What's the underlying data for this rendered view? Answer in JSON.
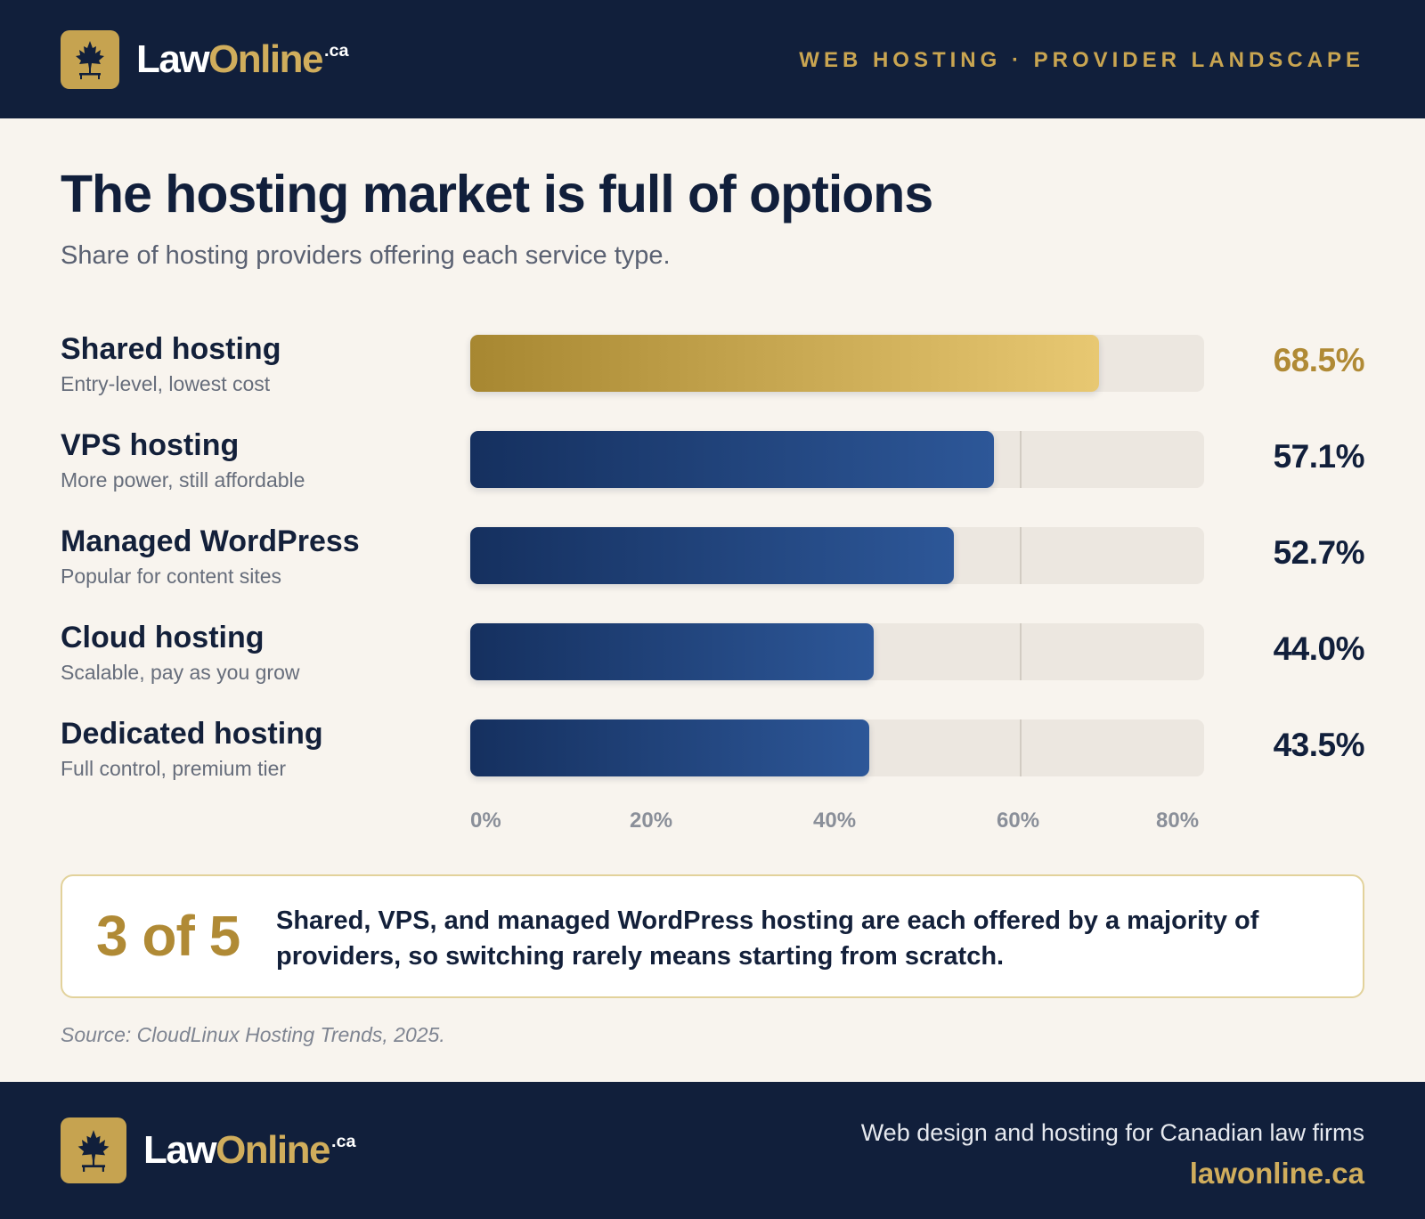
{
  "brand": {
    "name_part1": "Law",
    "name_part2": "Online",
    "tld": ".ca",
    "icon": "maple-leaf-icon",
    "badge_color": "#c6a350"
  },
  "header": {
    "tagline": "WEB HOSTING · PROVIDER LANDSCAPE"
  },
  "colors": {
    "navy": "#111f3b",
    "gold": "#c6a350",
    "bar_start": "#15305f",
    "bar_end": "#2d5798",
    "highlight_start": "#a78731",
    "highlight_end": "#e8c872",
    "background": "#f8f4ee"
  },
  "chart_data": {
    "type": "bar",
    "orientation": "horizontal",
    "title": "The hosting market is full of options",
    "subtitle": "Share of hosting providers offering each service type.",
    "categories": [
      "Shared hosting",
      "VPS hosting",
      "Managed WordPress",
      "Cloud hosting",
      "Dedicated hosting"
    ],
    "descriptions": [
      "Entry-level, lowest cost",
      "More power, still affordable",
      "Popular for content sites",
      "Scalable, pay as you grow",
      "Full control, premium tier"
    ],
    "values": [
      68.5,
      57.1,
      52.7,
      44.0,
      43.5
    ],
    "value_labels": [
      "68.5%",
      "57.1%",
      "52.7%",
      "44.0%",
      "43.5%"
    ],
    "highlight_index": 0,
    "xlim": [
      0,
      80
    ],
    "x_ticks": [
      "0%",
      "20%",
      "40%",
      "60%",
      "80%"
    ],
    "reference_line": 60,
    "grid": false
  },
  "callout": {
    "big": "3 of 5",
    "text": "Shared, VPS, and managed WordPress hosting are each offered by a majority of providers, so switching rarely means starting from scratch."
  },
  "source": "Source: CloudLinux Hosting Trends, 2025.",
  "footer": {
    "line1": "Web design and hosting for Canadian law firms",
    "line2": "lawonline.ca"
  }
}
